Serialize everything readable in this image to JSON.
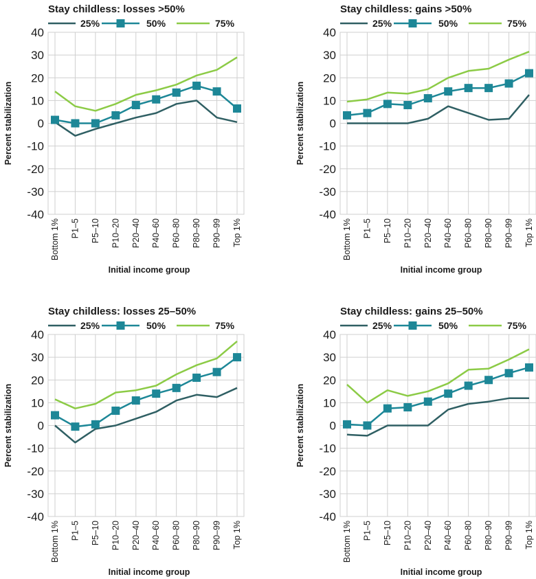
{
  "colors": {
    "s25": "#2f5f63",
    "s50": "#1d8797",
    "s75": "#8ccb46",
    "grid": "#cfcfcf",
    "text": "#1a1a1a"
  },
  "chart_data": [
    {
      "type": "line",
      "title": "Stay childless: losses >50%",
      "xlabel": "Initial income group",
      "ylabel": "Percent stabilization",
      "ylim": [
        -40,
        40
      ],
      "yticks": [
        40,
        30,
        20,
        10,
        0,
        -10,
        -20,
        -30,
        -40
      ],
      "grid": true,
      "legend": "top",
      "categories": [
        "Bottom 1%",
        "P1–5",
        "P5–10",
        "P10–20",
        "P20–40",
        "P40–60",
        "P60–80",
        "P80–90",
        "P90–99",
        "Top 1%"
      ],
      "series": [
        {
          "name": "25%",
          "values": [
            0.5,
            -5.5,
            -2.5,
            0,
            2.5,
            4.5,
            8.5,
            10,
            2.5,
            0.5
          ]
        },
        {
          "name": "50%",
          "values": [
            1.5,
            0,
            0,
            3.5,
            8,
            10.5,
            13.5,
            16.5,
            14,
            6.5
          ]
        },
        {
          "name": "75%",
          "values": [
            14,
            7.5,
            5.5,
            8.5,
            12.5,
            14.5,
            17,
            21,
            23.5,
            29
          ]
        }
      ]
    },
    {
      "type": "line",
      "title": "Stay childless: gains >50%",
      "xlabel": "Initial income group",
      "ylabel": "Percent stabilization",
      "ylim": [
        -40,
        40
      ],
      "yticks": [
        40,
        30,
        20,
        10,
        0,
        -10,
        -20,
        -30,
        -40
      ],
      "grid": true,
      "legend": "top",
      "categories": [
        "Bottom 1%",
        "P1–5",
        "P5–10",
        "P10–20",
        "P20–40",
        "P40–60",
        "P60–80",
        "P80–90",
        "P90–99",
        "Top 1%"
      ],
      "series": [
        {
          "name": "25%",
          "values": [
            0,
            0,
            0,
            0,
            2,
            7.5,
            4.5,
            1.5,
            2,
            12.5
          ]
        },
        {
          "name": "50%",
          "values": [
            3.5,
            4.5,
            8.5,
            8,
            11,
            14,
            15.5,
            15.5,
            17.5,
            22
          ]
        },
        {
          "name": "75%",
          "values": [
            9.5,
            10.5,
            13.5,
            13,
            15,
            20,
            23,
            24,
            28,
            31.5
          ]
        }
      ]
    },
    {
      "type": "line",
      "title": "Stay childless: losses 25–50%",
      "xlabel": "Initial income group",
      "ylabel": "Percent stabilization",
      "ylim": [
        -40,
        40
      ],
      "yticks": [
        40,
        30,
        20,
        10,
        0,
        -10,
        -20,
        -30,
        -40
      ],
      "grid": true,
      "legend": "top",
      "categories": [
        "Bottom 1%",
        "P1–5",
        "P5–10",
        "P10–20",
        "P20–40",
        "P40–60",
        "P60–80",
        "P80–90",
        "P90–99",
        "Top 1%"
      ],
      "series": [
        {
          "name": "25%",
          "values": [
            0,
            -7.5,
            -1.5,
            0,
            3,
            6,
            11,
            13.5,
            12.5,
            16.5
          ]
        },
        {
          "name": "50%",
          "values": [
            4.5,
            -0.5,
            0.5,
            6.5,
            11,
            14,
            16.5,
            21,
            23.5,
            30
          ]
        },
        {
          "name": "75%",
          "values": [
            11.5,
            7.5,
            9.5,
            14.5,
            15.5,
            17.5,
            22.5,
            26.5,
            29.5,
            37
          ]
        }
      ]
    },
    {
      "type": "line",
      "title": "Stay childless: gains 25–50%",
      "xlabel": "Initial income group",
      "ylabel": "Percent stabilization",
      "ylim": [
        -40,
        40
      ],
      "yticks": [
        40,
        30,
        20,
        10,
        0,
        -10,
        -20,
        -30,
        -40
      ],
      "grid": true,
      "legend": "top",
      "categories": [
        "Bottom 1%",
        "P1–5",
        "P5–10",
        "P10–20",
        "P20–40",
        "P40–60",
        "P60–80",
        "P80–90",
        "P90–99",
        "Top 1%"
      ],
      "series": [
        {
          "name": "25%",
          "values": [
            -4,
            -4.5,
            0,
            0,
            0,
            7,
            9.5,
            10.5,
            12,
            12
          ]
        },
        {
          "name": "50%",
          "values": [
            0.5,
            0,
            7.5,
            8,
            10.5,
            14,
            17.5,
            20,
            23,
            25.5
          ]
        },
        {
          "name": "75%",
          "values": [
            18,
            10,
            15.5,
            13,
            15,
            18.5,
            24.5,
            25,
            29,
            33.5
          ]
        }
      ]
    }
  ]
}
